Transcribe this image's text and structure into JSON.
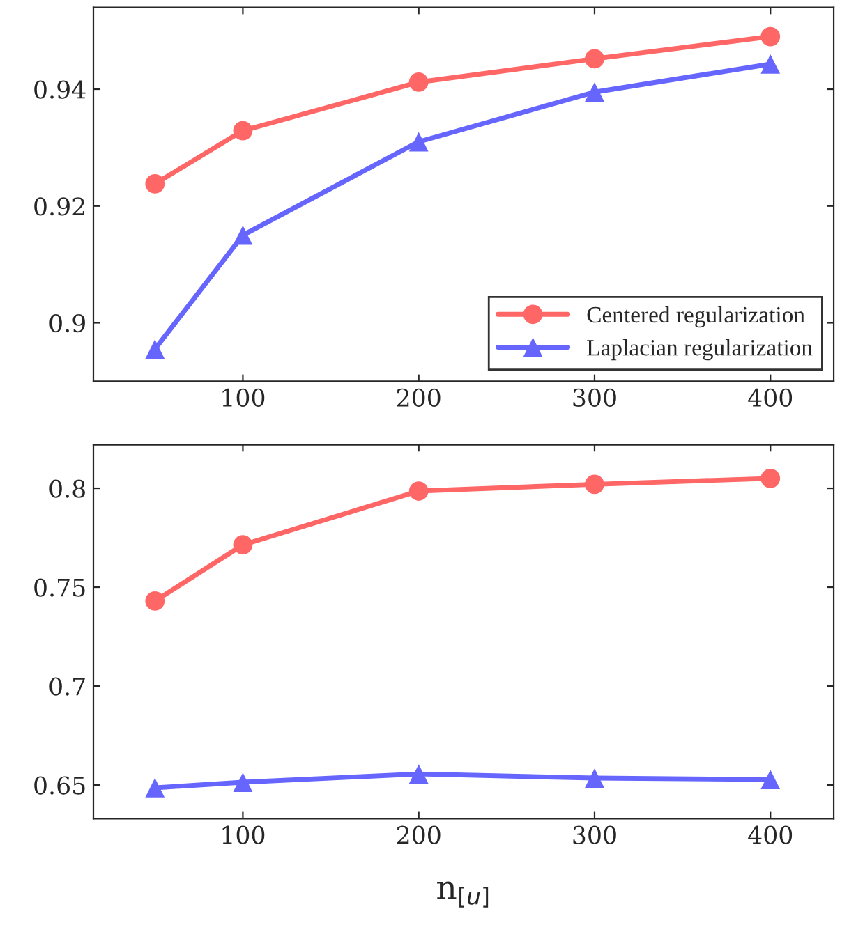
{
  "chart_data": [
    {
      "type": "line",
      "x": [
        50,
        100,
        200,
        300,
        400
      ],
      "xlim": [
        15,
        436
      ],
      "xticks": [
        100,
        200,
        300,
        400
      ],
      "ylim": [
        0.89,
        0.954
      ],
      "yticks": [
        0.9,
        0.92,
        0.94
      ],
      "grid": false,
      "legend": "bottom right",
      "series": [
        {
          "name": "Centered regularization",
          "color": "#ff6666",
          "marker": "circle",
          "values": [
            0.9238,
            0.9329,
            0.9412,
            0.9452,
            0.949
          ]
        },
        {
          "name": "Laplacian regularization",
          "color": "#6666ff",
          "marker": "triangle",
          "values": [
            0.8955,
            0.915,
            0.931,
            0.9395,
            0.9443
          ]
        }
      ]
    },
    {
      "type": "line",
      "x": [
        50,
        100,
        200,
        300,
        400
      ],
      "xlim": [
        15,
        436
      ],
      "xticks": [
        100,
        200,
        300,
        400
      ],
      "ylim": [
        0.633,
        0.822
      ],
      "yticks": [
        0.65,
        0.7,
        0.75,
        0.8
      ],
      "grid": false,
      "xlabel": "n$_{[u]}$",
      "series": [
        {
          "color": "#ff6666",
          "marker": "circle",
          "values": [
            0.743,
            0.7714,
            0.7986,
            0.802,
            0.805
          ]
        },
        {
          "color": "#6666ff",
          "marker": "triangle",
          "values": [
            0.6486,
            0.6514,
            0.6556,
            0.6535,
            0.6528
          ]
        }
      ]
    }
  ]
}
